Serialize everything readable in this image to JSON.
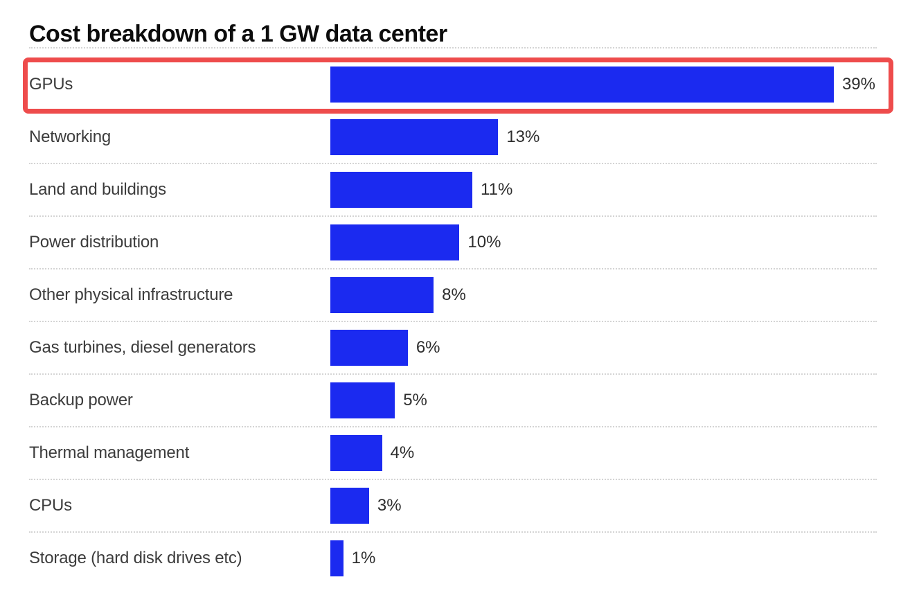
{
  "header": {
    "title": "Cost breakdown of a 1 GW data center"
  },
  "chart_data": {
    "type": "bar",
    "orientation": "horizontal",
    "title": "Cost breakdown of a 1 GW data center",
    "categories": [
      "GPUs",
      "Networking",
      "Land and buildings",
      "Power distribution",
      "Other physical infrastructure",
      "Gas turbines, diesel generators",
      "Backup power",
      "Thermal management",
      "CPUs",
      "Storage (hard disk drives etc)"
    ],
    "values": [
      39,
      13,
      11,
      10,
      8,
      6,
      5,
      4,
      3,
      1
    ],
    "value_labels": [
      "39%",
      "13%",
      "11%",
      "10%",
      "8%",
      "6%",
      "5%",
      "4%",
      "3%",
      "1%"
    ],
    "unit": "%",
    "xlim": [
      0,
      39
    ],
    "grid": false,
    "legend": false,
    "bar_color": "#1b2af0"
  },
  "annotation": {
    "type": "highlight-box",
    "highlighted_index": 0,
    "highlighted_category": "GPUs",
    "color": "#ee4c4c"
  },
  "colors": {
    "bar": "#1b2af0",
    "highlight": "#ee4c4c",
    "title_text": "#0c0c0c",
    "label_text": "#3c3c3c",
    "value_text": "#2e2e2e",
    "separator": "#d4d4d4",
    "background": "#ffffff"
  }
}
